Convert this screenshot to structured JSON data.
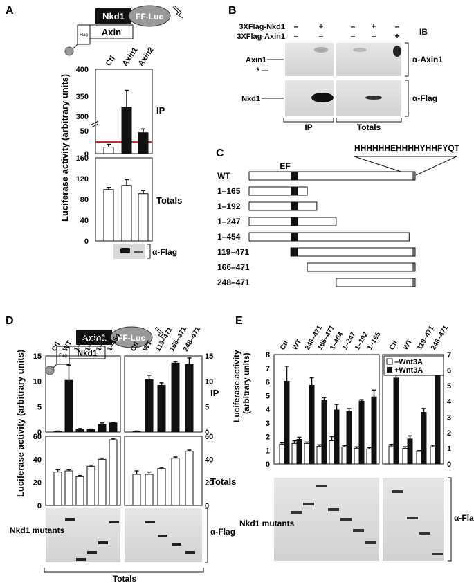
{
  "panel_a": {
    "letter": "A",
    "construct_top": [
      "Nkd1",
      "FF-Luc"
    ],
    "construct_bottom": [
      "Flag",
      "Axin"
    ],
    "categories": [
      "Ctl",
      "Axin1",
      "Axin2"
    ],
    "ylabel": "Luciferase activity (arbitrary units)",
    "label_ip": "IP",
    "label_totals": "Totals",
    "blot_label": "α-Flag",
    "ip_ticks_upper": [
      "400",
      "350",
      "300"
    ],
    "ip_ticks_lower": [
      "50",
      "0"
    ],
    "tot_ticks": [
      "160",
      "120",
      "80",
      "40",
      "0"
    ],
    "chart_data": [
      {
        "type": "bar",
        "title": "",
        "xlabel": "",
        "ylabel": "Luciferase activity (arbitrary units)",
        "panel": "IP",
        "categories": [
          "Ctl",
          "Axin1",
          "Axin2"
        ],
        "values": [
          14,
          325,
          45
        ],
        "errors": [
          6,
          33,
          8
        ],
        "y_axis_break": [
          55,
          290
        ],
        "reference_line": 15,
        "reference_line_color": "#e02020"
      },
      {
        "type": "bar",
        "title": "",
        "xlabel": "",
        "ylabel": "Luciferase activity (arbitrary units)",
        "panel": "Totals",
        "categories": [
          "Ctl",
          "Axin1",
          "Axin2"
        ],
        "values": [
          99,
          107,
          91
        ],
        "errors": [
          4,
          11,
          6
        ],
        "ylim": [
          0,
          160
        ]
      }
    ]
  },
  "panel_b": {
    "letter": "B",
    "row1_label": "3XFlag-Nkd1",
    "row2_label": "3XFlag-Axin1",
    "ib_label": "IB",
    "row1_signs": [
      "–",
      "+",
      "–",
      "+",
      "–"
    ],
    "row2_signs": [
      "–",
      "–",
      "–",
      "–",
      "+"
    ],
    "band_axin1": "Axin1",
    "band_star": "*",
    "band_nkd1": "Nkd1",
    "antibody1": "α-Axin1",
    "antibody2": "α-Flag",
    "bottom_ip": "IP",
    "bottom_totals": "Totals"
  },
  "panel_c": {
    "letter": "C",
    "sequence": "HHHHHHEHHHHYHHFYQT",
    "ef_label": "EF",
    "constructs": [
      "WT",
      "1–165",
      "1–192",
      "1–247",
      "1–454",
      "119–471",
      "166–471",
      "248–471"
    ]
  },
  "panel_d": {
    "letter": "D",
    "construct_top": [
      "Axin1",
      "FF-Luc"
    ],
    "construct_bottom": [
      "Flag",
      "Nkd1"
    ],
    "ylabel": "Luciferase activity (arbitrary units)",
    "label_ip": "IP",
    "label_totals": "Totals",
    "blot_label_left": "Nkd1 mutants",
    "blot_antibody": "α-Flag",
    "bottom_label": "Totals",
    "ip_ticks": [
      "15",
      "10",
      "5",
      "0"
    ],
    "tot_ticks": [
      "60",
      "40",
      "20",
      "0"
    ],
    "chart_data": [
      {
        "type": "bar",
        "panel": "IP-left",
        "categories": [
          "Ctl",
          "WT",
          "1–165",
          "1–192",
          "1–247",
          "1–454"
        ],
        "values": [
          0.1,
          10.2,
          0.6,
          0.5,
          1.5,
          1.8
        ],
        "errors": [
          0.1,
          3.0,
          0.1,
          0.1,
          0.3,
          0.1
        ],
        "ylim": [
          0,
          15
        ]
      },
      {
        "type": "bar",
        "panel": "IP-right",
        "categories": [
          "Ctl",
          "WT",
          "119–471",
          "166–471",
          "248–471"
        ],
        "values": [
          0.1,
          10.3,
          9.2,
          13.6,
          13.3
        ],
        "errors": [
          0.1,
          0.9,
          0.5,
          0.3,
          1.3
        ],
        "ylim": [
          0,
          15
        ]
      },
      {
        "type": "bar",
        "panel": "Totals-left",
        "categories": [
          "Ctl",
          "WT",
          "1–165",
          "1–192",
          "1–247",
          "1–454"
        ],
        "values": [
          29,
          30,
          25,
          34,
          40,
          57
        ],
        "errors": [
          2,
          1,
          1,
          1,
          1,
          1
        ],
        "ylim": [
          0,
          60
        ]
      },
      {
        "type": "bar",
        "panel": "Totals-right",
        "categories": [
          "Ctl",
          "WT",
          "119–471",
          "166–471",
          "248–471"
        ],
        "values": [
          27,
          27,
          32,
          41,
          47
        ],
        "errors": [
          3,
          2,
          1,
          1,
          1
        ],
        "ylim": [
          0,
          60
        ]
      }
    ]
  },
  "panel_e": {
    "letter": "E",
    "ylabel": "Luciferase activity (arbitrary units)",
    "legend_minus": "–Wnt3A",
    "legend_plus": "+Wnt3A",
    "ticks": [
      "8",
      "7",
      "6",
      "5",
      "4",
      "3",
      "2",
      "1",
      "0"
    ],
    "ticks_right": [
      "7",
      "6",
      "5",
      "4",
      "3",
      "2",
      "1",
      "0"
    ],
    "blot_label_left": "Nkd1 mutants",
    "blot_antibody": "α-Flag",
    "chart_data": [
      {
        "type": "bar",
        "panel": "left",
        "categories": [
          "Ctl",
          "WT",
          "248–471",
          "166–471",
          "1–454",
          "1–247",
          "1–192",
          "1–165"
        ],
        "series": [
          {
            "name": "–Wnt3A",
            "values": [
              1.45,
              1.5,
              1.5,
              1.3,
              1.7,
              1.25,
              1.15,
              1.1
            ]
          },
          {
            "name": "+Wnt3A",
            "values": [
              6.05,
              1.8,
              5.75,
              4.65,
              3.95,
              3.85,
              4.6,
              4.9
            ]
          }
        ],
        "errors": [
          [
            0.1,
            0.2,
            0.1,
            0.1,
            0.3,
            0.1,
            0.1,
            0.1
          ],
          [
            1.1,
            0.15,
            0.55,
            0.2,
            0.4,
            0.2,
            0.1,
            0.5
          ]
        ],
        "ylim": [
          0,
          8
        ]
      },
      {
        "type": "bar",
        "panel": "right",
        "categories": [
          "Ctl",
          "WT",
          "119–471",
          "248–471"
        ],
        "series": [
          {
            "name": "–Wnt3A",
            "values": [
              1.15,
              1.0,
              0.8,
              1.1
            ]
          },
          {
            "name": "+Wnt3A",
            "values": [
              5.5,
              1.6,
              3.3,
              6.5
            ]
          }
        ],
        "errors": [
          [
            0.1,
            0.1,
            0.05,
            0.1
          ],
          [
            0.2,
            0.2,
            0.25,
            0.3
          ]
        ],
        "ylim": [
          0,
          7
        ]
      }
    ]
  }
}
